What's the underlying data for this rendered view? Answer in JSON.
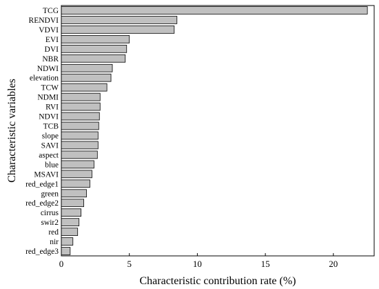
{
  "chart_data": {
    "type": "bar",
    "orientation": "horizontal",
    "categories": [
      "TCG",
      "RENDVI",
      "VDVI",
      "EVI",
      "DVI",
      "NBR",
      "NDWI",
      "elevation",
      "TCW",
      "NDMI",
      "RVI",
      "NDVI",
      "TCB",
      "slope",
      "SAVI",
      "aspect",
      "blue",
      "MSAVI",
      "red_edge1",
      "green",
      "red_edge2",
      "cirrus",
      "swir2",
      "red",
      "nir",
      "red_edge3"
    ],
    "values": [
      22.5,
      8.5,
      8.3,
      5.0,
      4.8,
      4.7,
      3.75,
      3.65,
      3.35,
      2.85,
      2.85,
      2.8,
      2.75,
      2.7,
      2.7,
      2.65,
      2.4,
      2.25,
      2.1,
      1.85,
      1.65,
      1.45,
      1.3,
      1.2,
      0.85,
      0.65
    ],
    "xlabel": "Characteristic contribution rate (%)",
    "ylabel": "Characteristic variables",
    "xlim": [
      0,
      23
    ],
    "xticks": [
      0,
      5,
      10,
      15,
      20
    ],
    "bar_color": "#c0c0c0",
    "grid": false
  }
}
